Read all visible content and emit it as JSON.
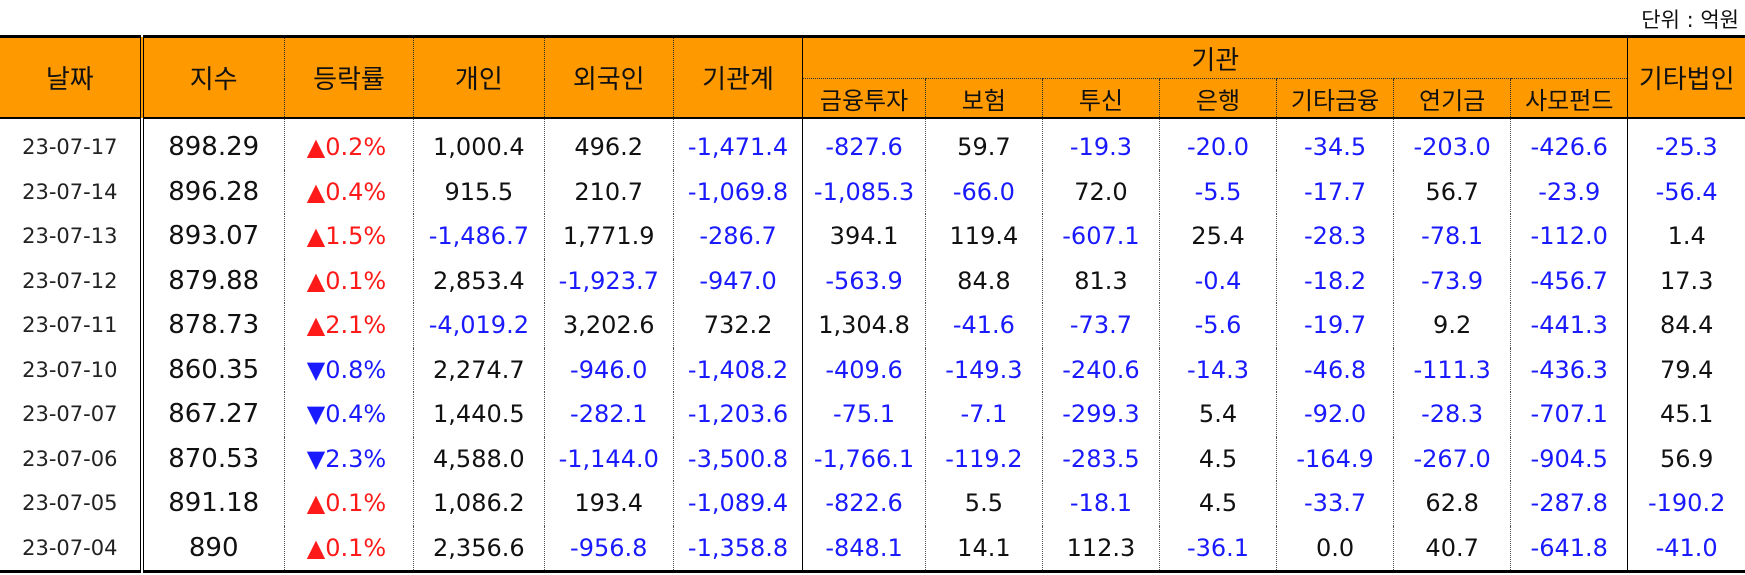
{
  "unit_label": "단위 : 억원",
  "headers": {
    "date": "날짜",
    "index": "지수",
    "change": "등락률",
    "individual": "개인",
    "foreign": "외국인",
    "institution_total": "기관계",
    "institution_group": "기관",
    "institution_sub": [
      "금융투자",
      "보험",
      "투신",
      "은행",
      "기타금융",
      "연기금",
      "사모펀드"
    ],
    "other_corp": "기타법인"
  },
  "rows": [
    {
      "date": "23-07-17",
      "index": "898.29",
      "dir": "up",
      "change": "▲0.2%",
      "values": [
        "1,000.4",
        "496.2",
        "-1,471.4",
        "-827.6",
        "59.7",
        "-19.3",
        "-20.0",
        "-34.5",
        "-203.0",
        "-426.6",
        "-25.3"
      ]
    },
    {
      "date": "23-07-14",
      "index": "896.28",
      "dir": "up",
      "change": "▲0.4%",
      "values": [
        "915.5",
        "210.7",
        "-1,069.8",
        "-1,085.3",
        "-66.0",
        "72.0",
        "-5.5",
        "-17.7",
        "56.7",
        "-23.9",
        "-56.4"
      ]
    },
    {
      "date": "23-07-13",
      "index": "893.07",
      "dir": "up",
      "change": "▲1.5%",
      "values": [
        "-1,486.7",
        "1,771.9",
        "-286.7",
        "394.1",
        "119.4",
        "-607.1",
        "25.4",
        "-28.3",
        "-78.1",
        "-112.0",
        "1.4"
      ]
    },
    {
      "date": "23-07-12",
      "index": "879.88",
      "dir": "up",
      "change": "▲0.1%",
      "values": [
        "2,853.4",
        "-1,923.7",
        "-947.0",
        "-563.9",
        "84.8",
        "81.3",
        "-0.4",
        "-18.2",
        "-73.9",
        "-456.7",
        "17.3"
      ]
    },
    {
      "date": "23-07-11",
      "index": "878.73",
      "dir": "up",
      "change": "▲2.1%",
      "values": [
        "-4,019.2",
        "3,202.6",
        "732.2",
        "1,304.8",
        "-41.6",
        "-73.7",
        "-5.6",
        "-19.7",
        "9.2",
        "-441.3",
        "84.4"
      ]
    },
    {
      "date": "23-07-10",
      "index": "860.35",
      "dir": "down",
      "change": "▼0.8%",
      "values": [
        "2,274.7",
        "-946.0",
        "-1,408.2",
        "-409.6",
        "-149.3",
        "-240.6",
        "-14.3",
        "-46.8",
        "-111.3",
        "-436.3",
        "79.4"
      ]
    },
    {
      "date": "23-07-07",
      "index": "867.27",
      "dir": "down",
      "change": "▼0.4%",
      "values": [
        "1,440.5",
        "-282.1",
        "-1,203.6",
        "-75.1",
        "-7.1",
        "-299.3",
        "5.4",
        "-92.0",
        "-28.3",
        "-707.1",
        "45.1"
      ]
    },
    {
      "date": "23-07-06",
      "index": "870.53",
      "dir": "down",
      "change": "▼2.3%",
      "values": [
        "4,588.0",
        "-1,144.0",
        "-3,500.8",
        "-1,766.1",
        "-119.2",
        "-283.5",
        "4.5",
        "-164.9",
        "-267.0",
        "-904.5",
        "56.9"
      ]
    },
    {
      "date": "23-07-05",
      "index": "891.18",
      "dir": "up",
      "change": "▲0.1%",
      "values": [
        "1,086.2",
        "193.4",
        "-1,089.4",
        "-822.6",
        "5.5",
        "-18.1",
        "4.5",
        "-33.7",
        "62.8",
        "-287.8",
        "-190.2"
      ]
    },
    {
      "date": "23-07-04",
      "index": "890",
      "dir": "up",
      "change": "▲0.1%",
      "values": [
        "2,356.6",
        "-956.8",
        "-1,358.8",
        "-848.1",
        "14.1",
        "112.3",
        "-36.1",
        "0.0",
        "40.7",
        "-641.8",
        "-41.0"
      ]
    }
  ],
  "colors": {
    "header_bg": "#FF9900",
    "negative": "#1a1aff",
    "up": "#ff1a1a",
    "down": "#1a1aff"
  }
}
